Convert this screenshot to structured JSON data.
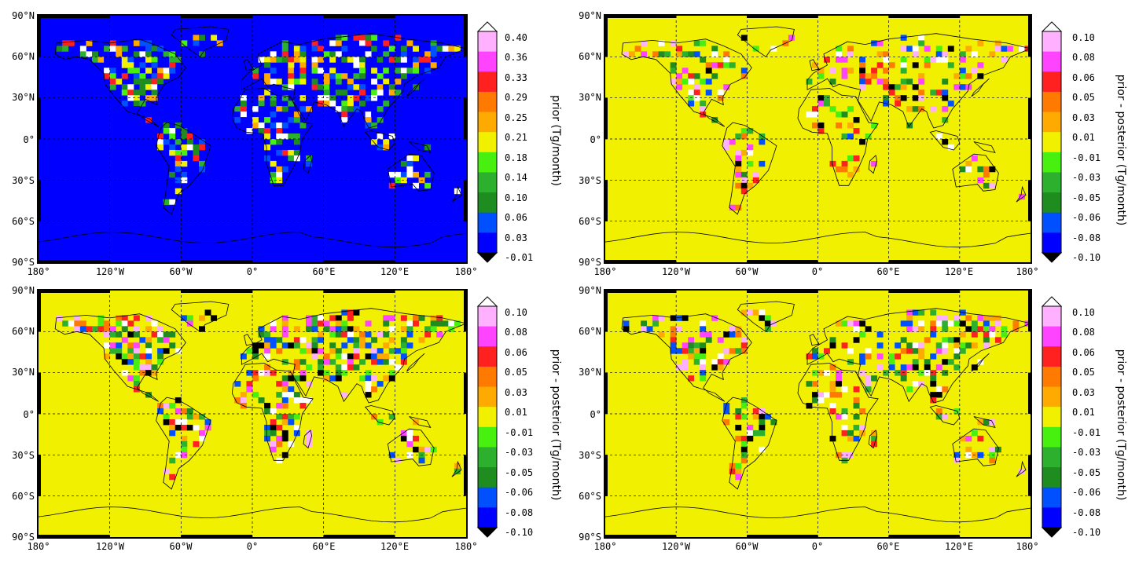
{
  "colors": {
    "scale": [
      "#0000ff",
      "#0050ff",
      "#1e8c1e",
      "#2db02d",
      "#48f010",
      "#f0f000",
      "#ffaa00",
      "#ff7a00",
      "#ff2020",
      "#ff44ff",
      "#ffb0ff"
    ],
    "under": "#000000",
    "over": "#ffffff",
    "land_black": "#000000",
    "land_white": "#ffffff"
  },
  "map_axes": {
    "lat_labels": [
      "90°N",
      "60°N",
      "30°N",
      "0°",
      "30°S",
      "60°S",
      "90°S"
    ],
    "lon_labels": [
      "180°",
      "120°W",
      "60°W",
      "0°",
      "60°E",
      "120°E",
      "180°"
    ]
  },
  "panels": [
    {
      "id": "top-left",
      "colorbar": {
        "label": "prior (Tg/month)",
        "ticks": [
          "0.40",
          "0.36",
          "0.33",
          "0.29",
          "0.25",
          "0.21",
          "0.18",
          "0.14",
          "0.10",
          "0.06",
          "0.03",
          "-0.01"
        ]
      }
    },
    {
      "id": "top-right",
      "colorbar": {
        "label": "prior - posterior (Tg/month)",
        "ticks": [
          "0.10",
          "0.08",
          "0.06",
          "0.05",
          "0.03",
          "0.01",
          "-0.01",
          "-0.03",
          "-0.05",
          "-0.06",
          "-0.08",
          "-0.10"
        ]
      }
    },
    {
      "id": "bottom-left",
      "colorbar": {
        "label": "prior - posterior (Tg/month)",
        "ticks": [
          "0.10",
          "0.08",
          "0.06",
          "0.05",
          "0.03",
          "0.01",
          "-0.01",
          "-0.03",
          "-0.05",
          "-0.06",
          "-0.08",
          "-0.10"
        ]
      }
    },
    {
      "id": "bottom-right",
      "colorbar": {
        "label": "prior - posterior (Tg/month)",
        "ticks": [
          "0.10",
          "0.08",
          "0.06",
          "0.05",
          "0.03",
          "0.01",
          "-0.01",
          "-0.03",
          "-0.05",
          "-0.06",
          "-0.08",
          "-0.10"
        ]
      }
    }
  ]
}
